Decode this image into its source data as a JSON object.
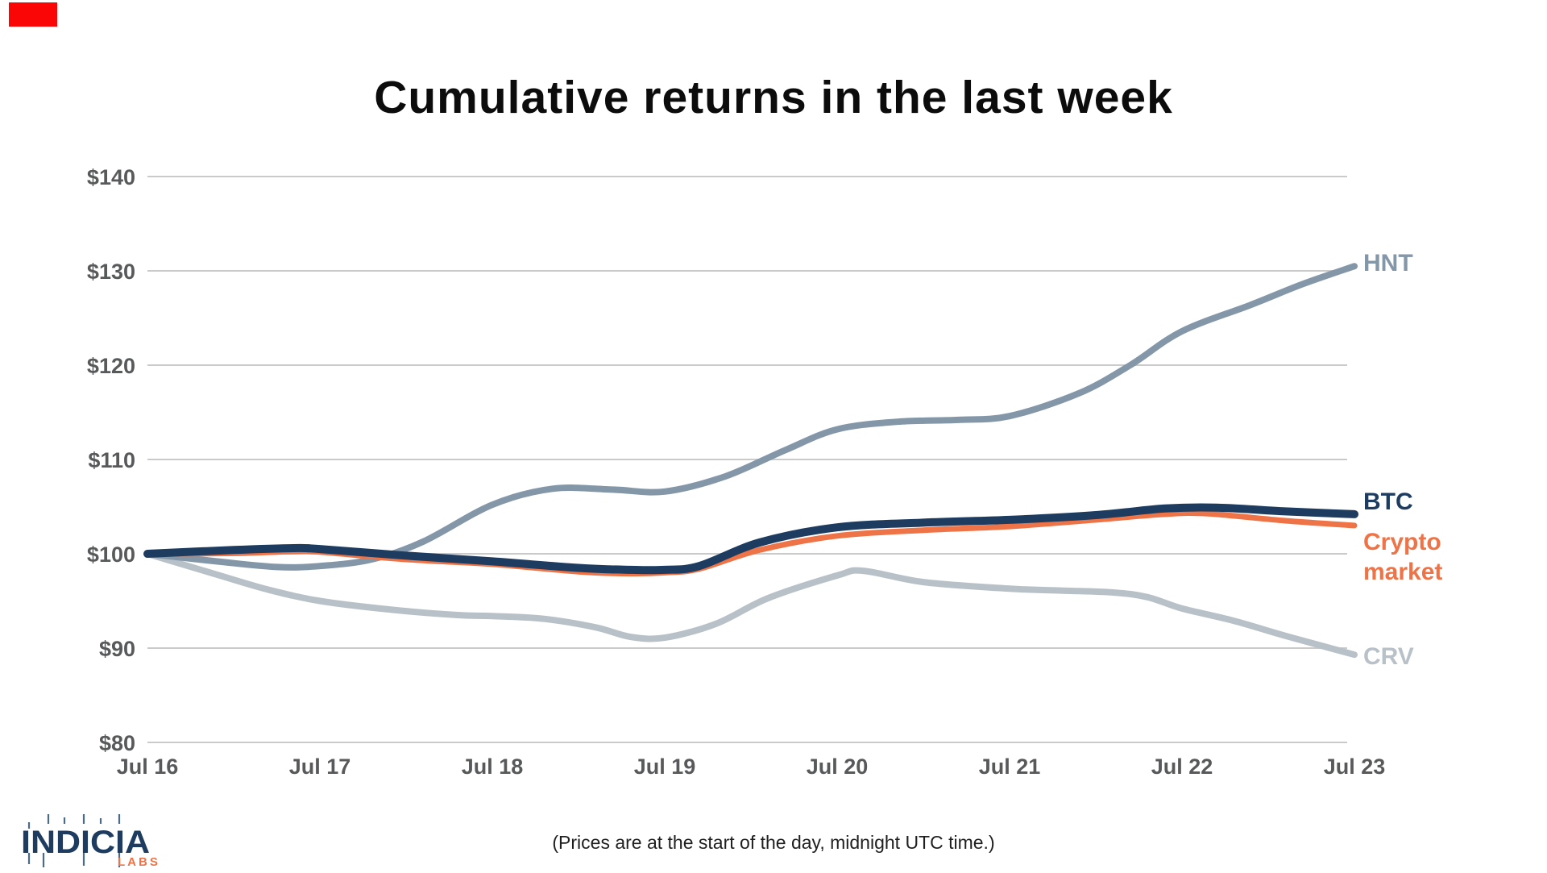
{
  "indicator_color": "#fa0606",
  "title": "Cumulative returns in the last week",
  "footer": "(Prices are at the start of the day, midnight UTC time.)",
  "logo": {
    "name": "INDICIA",
    "sub": "LABS"
  },
  "colors": {
    "navy": "#1d3c5f",
    "orange": "#ee7448",
    "slate": "#8497a9",
    "lightgray": "#b9c1c8",
    "grid": "#cacaca",
    "tick_text": "#58595b"
  },
  "chart_data": {
    "type": "line",
    "title": "Cumulative returns in the last week",
    "xlabel": "",
    "ylabel": "",
    "ylim": [
      80,
      140
    ],
    "grid": "horizontal",
    "legend_position": "right-end-labels",
    "x_labels": [
      "Jul 16",
      "Jul 17",
      "Jul 18",
      "Jul 19",
      "Jul 20",
      "Jul 21",
      "Jul 22",
      "Jul 23"
    ],
    "y_ticks": [
      {
        "label": "$140",
        "value": 140
      },
      {
        "label": "$130",
        "value": 130
      },
      {
        "label": "$120",
        "value": 120
      },
      {
        "label": "$110",
        "value": 110
      },
      {
        "label": "$100",
        "value": 100
      },
      {
        "label": "$90",
        "value": 90
      },
      {
        "label": "$80",
        "value": 80
      }
    ],
    "series": [
      {
        "name": "CRV",
        "label_lines": [
          "CRV"
        ],
        "color": "#b9c1c8",
        "stroke_width": 8,
        "values_daily": [
          100,
          95.0,
          93.4,
          91.1,
          97.7,
          96.3,
          94.2,
          89.3
        ],
        "points": [
          [
            0,
            100
          ],
          [
            0.4,
            97.8
          ],
          [
            0.7,
            96.2
          ],
          [
            1,
            95.0
          ],
          [
            1.4,
            94.1
          ],
          [
            1.8,
            93.5
          ],
          [
            2,
            93.4
          ],
          [
            2.3,
            93.1
          ],
          [
            2.6,
            92.2
          ],
          [
            2.8,
            91.2
          ],
          [
            3,
            91.1
          ],
          [
            3.3,
            92.6
          ],
          [
            3.6,
            95.3
          ],
          [
            4,
            97.7
          ],
          [
            4.15,
            98.2
          ],
          [
            4.5,
            97.0
          ],
          [
            5,
            96.3
          ],
          [
            5.3,
            96.1
          ],
          [
            5.6,
            95.9
          ],
          [
            5.8,
            95.4
          ],
          [
            6,
            94.2
          ],
          [
            6.3,
            92.9
          ],
          [
            6.6,
            91.3
          ],
          [
            7,
            89.3
          ]
        ]
      },
      {
        "name": "HNT",
        "label_lines": [
          "HNT"
        ],
        "color": "#8497a9",
        "stroke_width": 8,
        "values_daily": [
          100,
          98.7,
          105.2,
          106.6,
          113.2,
          114.6,
          123.6,
          130.5
        ],
        "points": [
          [
            0,
            100
          ],
          [
            0.4,
            99.2
          ],
          [
            0.75,
            98.6
          ],
          [
            1,
            98.7
          ],
          [
            1.3,
            99.4
          ],
          [
            1.6,
            101.3
          ],
          [
            2,
            105.2
          ],
          [
            2.35,
            106.9
          ],
          [
            2.7,
            106.8
          ],
          [
            3,
            106.6
          ],
          [
            3.35,
            108.2
          ],
          [
            3.7,
            111.0
          ],
          [
            4,
            113.2
          ],
          [
            4.35,
            114.0
          ],
          [
            4.7,
            114.2
          ],
          [
            5,
            114.6
          ],
          [
            5.4,
            117.0
          ],
          [
            5.7,
            120.0
          ],
          [
            6,
            123.6
          ],
          [
            6.4,
            126.4
          ],
          [
            6.7,
            128.6
          ],
          [
            7,
            130.5
          ]
        ]
      },
      {
        "name": "Crypto market",
        "label_lines": [
          "Crypto",
          "market"
        ],
        "color": "#ee7448",
        "stroke_width": 7,
        "values_daily": [
          100,
          100.2,
          98.9,
          98.0,
          101.9,
          102.9,
          104.2,
          103.0
        ],
        "points": [
          [
            0,
            100
          ],
          [
            0.5,
            100.05
          ],
          [
            0.85,
            100.25
          ],
          [
            1,
            100.2
          ],
          [
            1.5,
            99.4
          ],
          [
            2,
            98.9
          ],
          [
            2.5,
            98.1
          ],
          [
            2.8,
            97.9
          ],
          [
            3,
            98.0
          ],
          [
            3.2,
            98.4
          ],
          [
            3.55,
            100.4
          ],
          [
            4,
            101.9
          ],
          [
            4.5,
            102.5
          ],
          [
            5,
            102.9
          ],
          [
            5.5,
            103.6
          ],
          [
            5.9,
            104.2
          ],
          [
            6.15,
            104.25
          ],
          [
            6.6,
            103.5
          ],
          [
            7,
            103.0
          ]
        ]
      },
      {
        "name": "BTC",
        "label_lines": [
          "BTC"
        ],
        "color": "#1d3c5f",
        "stroke_width": 10,
        "values_daily": [
          100,
          100.5,
          99.2,
          98.3,
          102.8,
          103.6,
          104.8,
          104.2
        ],
        "points": [
          [
            0,
            100
          ],
          [
            0.5,
            100.4
          ],
          [
            0.85,
            100.6
          ],
          [
            1,
            100.5
          ],
          [
            1.5,
            99.8
          ],
          [
            2,
            99.2
          ],
          [
            2.5,
            98.5
          ],
          [
            2.8,
            98.3
          ],
          [
            3,
            98.3
          ],
          [
            3.2,
            98.7
          ],
          [
            3.55,
            101.2
          ],
          [
            4,
            102.8
          ],
          [
            4.5,
            103.3
          ],
          [
            5,
            103.6
          ],
          [
            5.5,
            104.1
          ],
          [
            5.9,
            104.8
          ],
          [
            6.2,
            104.9
          ],
          [
            6.6,
            104.5
          ],
          [
            7,
            104.2
          ]
        ]
      }
    ]
  }
}
